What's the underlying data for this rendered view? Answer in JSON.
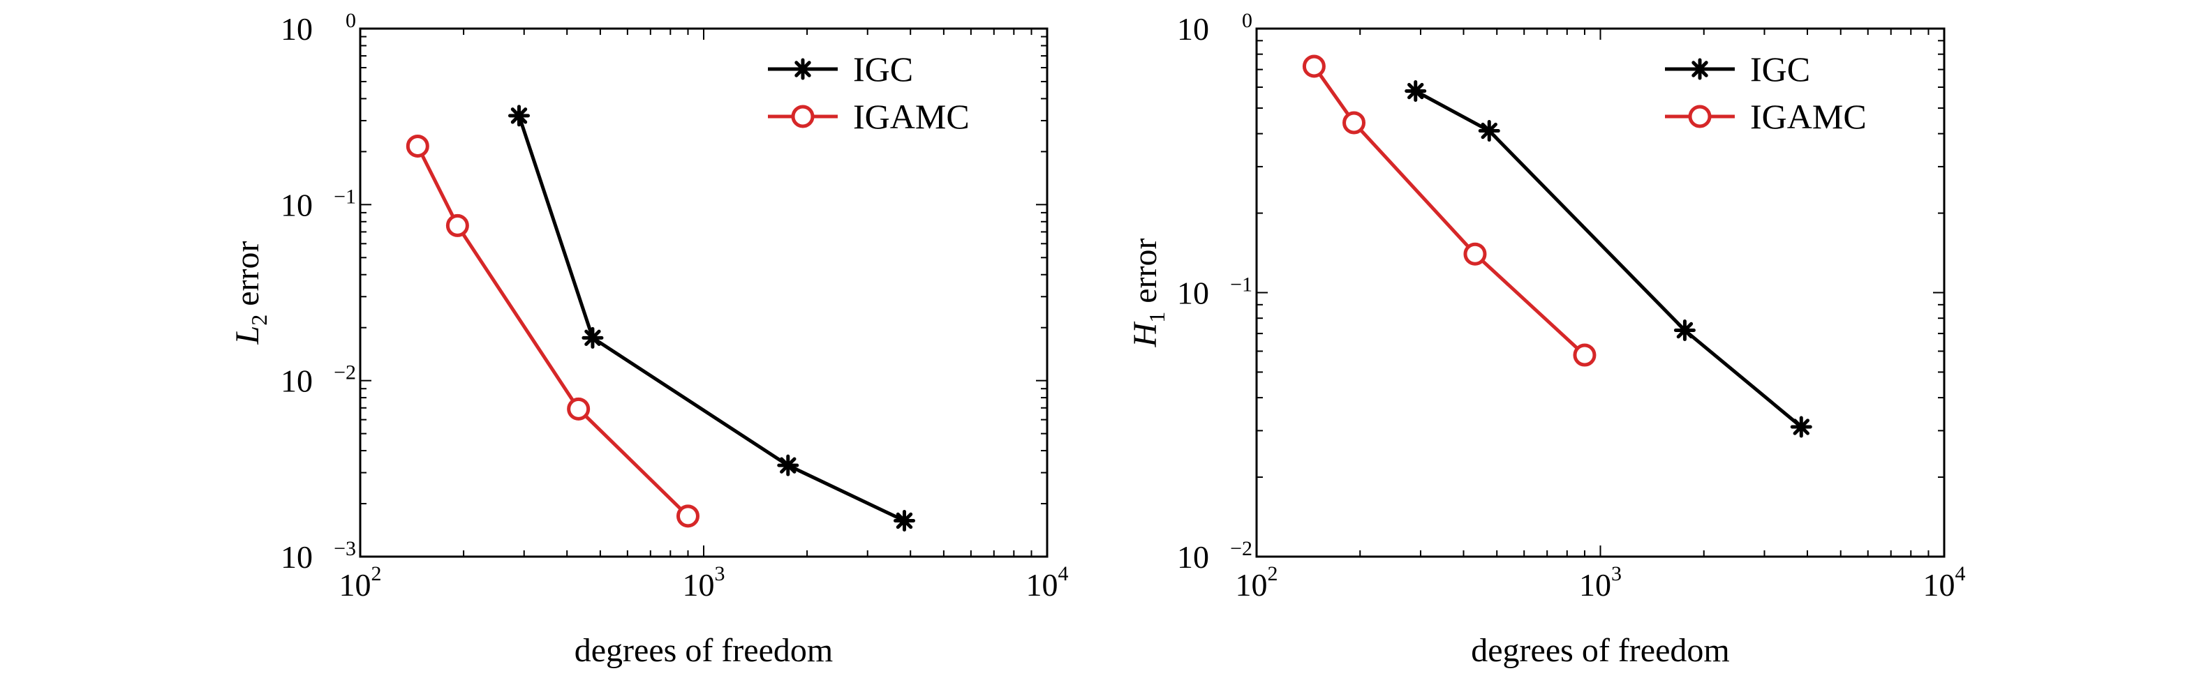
{
  "figure": {
    "background": "#ffffff"
  },
  "chart_data": [
    {
      "type": "line",
      "xscale": "log",
      "yscale": "log",
      "xlim": [
        100,
        10000
      ],
      "ylim": [
        0.001,
        1
      ],
      "xlabel": "degrees of freedom",
      "ylabel": {
        "main": "L",
        "sub": "2",
        "rest": " error"
      },
      "xticks": [
        {
          "base": "10",
          "exp": "2"
        },
        {
          "base": "10",
          "exp": "3"
        },
        {
          "base": "10",
          "exp": "4"
        }
      ],
      "yticks": [
        {
          "base": "10",
          "exp": "0"
        },
        {
          "base": "10",
          "exp": "−1"
        },
        {
          "base": "10",
          "exp": "−2"
        },
        {
          "base": "10",
          "exp": "−3"
        }
      ],
      "legend": "top-right",
      "grid": false,
      "series": [
        {
          "name": "IGC",
          "color": "#000000",
          "marker": "asterisk",
          "x": [
            290,
            475,
            1760,
            3840
          ],
          "y": [
            0.32,
            0.0175,
            0.0033,
            0.0016
          ]
        },
        {
          "name": "IGAMC",
          "color": "#d62728",
          "marker": "circle",
          "x": [
            147,
            192,
            432,
            900
          ],
          "y": [
            0.215,
            0.076,
            0.0069,
            0.0017
          ]
        }
      ]
    },
    {
      "type": "line",
      "xscale": "log",
      "yscale": "log",
      "xlim": [
        100,
        10000
      ],
      "ylim": [
        0.01,
        1
      ],
      "xlabel": "degrees of freedom",
      "ylabel": {
        "main": "H",
        "sub": "1",
        "rest": " error"
      },
      "xticks": [
        {
          "base": "10",
          "exp": "2"
        },
        {
          "base": "10",
          "exp": "3"
        },
        {
          "base": "10",
          "exp": "4"
        }
      ],
      "yticks": [
        {
          "base": "10",
          "exp": "0"
        },
        {
          "base": "10",
          "exp": "−1"
        },
        {
          "base": "10",
          "exp": "−2"
        }
      ],
      "legend": "top-right",
      "grid": false,
      "series": [
        {
          "name": "IGC",
          "color": "#000000",
          "marker": "asterisk",
          "x": [
            290,
            475,
            1760,
            3840
          ],
          "y": [
            0.58,
            0.41,
            0.072,
            0.031
          ]
        },
        {
          "name": "IGAMC",
          "color": "#d62728",
          "marker": "circle",
          "x": [
            147,
            192,
            432,
            900
          ],
          "y": [
            0.72,
            0.44,
            0.14,
            0.058
          ]
        }
      ]
    }
  ]
}
